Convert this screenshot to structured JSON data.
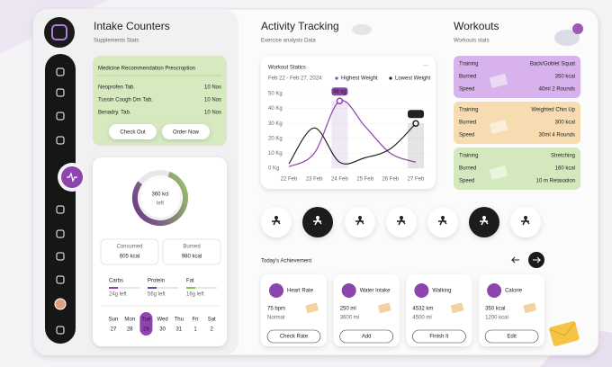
{
  "intake": {
    "title": "Intake Counters",
    "subtitle": "Supplements Stats",
    "prescription": {
      "title": "Medicine Recommendation Prescroption",
      "rows": [
        [
          "Neoprofen Tab.",
          "10 Nos"
        ],
        [
          "Tussin Cough Dm Tab.",
          "10 Nos"
        ],
        [
          "Benadry. Tab.",
          "10 Nos"
        ]
      ],
      "buttons": [
        "Check Out",
        "Order Now"
      ]
    },
    "calories": {
      "value": "360 kcl",
      "label": "left",
      "consumed": {
        "label": "Consumed",
        "value": "605 kcal"
      },
      "burned": {
        "label": "Burned",
        "value": "980 kcal"
      }
    },
    "macros": [
      {
        "name": "Carbs",
        "left": "24g left",
        "color": "#8e44ad"
      },
      {
        "name": "Protein",
        "left": "56g left",
        "color": "#6b4c9a"
      },
      {
        "name": "Fat",
        "left": "16g left",
        "color": "#8bc34a"
      }
    ],
    "calendar": {
      "days": [
        [
          "Sun",
          "27"
        ],
        [
          "Mon",
          "28"
        ],
        [
          "Tue",
          "29"
        ],
        [
          "Wed",
          "30"
        ],
        [
          "Thu",
          "31"
        ],
        [
          "Fri",
          "1"
        ],
        [
          "Sat",
          "2"
        ]
      ],
      "selected": 2
    }
  },
  "activity": {
    "title": "Activity Tracking",
    "subtitle": "Exercise analysis Data",
    "chart": {
      "type": "line",
      "title": "Workout Statics",
      "subtitle": "Feb 22 - Feb 27, 2024",
      "categories": [
        "22 Feb",
        "23 Feb",
        "24 Feb",
        "25 Feb",
        "26 Feb",
        "27 Feb"
      ],
      "series": [
        {
          "name": "Highest Weight",
          "color": "#8e44ad",
          "values": [
            1,
            10,
            45,
            28,
            10,
            4
          ]
        },
        {
          "name": "Lowest Weight",
          "color": "#222222",
          "values": [
            3,
            27,
            4,
            7,
            13,
            30
          ]
        }
      ],
      "ylim": [
        0,
        50
      ],
      "yticks": [
        {
          "value": 0,
          "label": "0 Kg"
        },
        {
          "value": 10,
          "label": "10 Kg"
        },
        {
          "value": 20,
          "label": "20 Kg"
        },
        {
          "value": 30,
          "label": "30 Kg"
        },
        {
          "value": 40,
          "label": "40 Kg"
        },
        {
          "value": 50,
          "label": "50 Kg"
        }
      ],
      "annotations": [
        "48 kg",
        "38 kg"
      ]
    },
    "achievement_title": "Today's Achievement",
    "achievements": [
      {
        "title": "Heart Rate",
        "value": "75 bpm",
        "note": "Normal",
        "button": "Check Rate"
      },
      {
        "title": "Water Intake",
        "value": "250 ml",
        "note": "3600 ml",
        "button": "Add"
      },
      {
        "title": "Walking",
        "value": "4532 km",
        "note": "4500 ml",
        "button": "Finish It"
      },
      {
        "title": "Calorie",
        "value": "350 kcal",
        "note": "1200 kcal",
        "button": "Edit"
      }
    ]
  },
  "workouts": {
    "title": "Workouts",
    "subtitle": "Workouts stats",
    "cards": [
      {
        "color": "#d7b2ec",
        "rows": [
          [
            "Training",
            "Back/Goblet Squat"
          ],
          [
            "Burned",
            "350 kcal"
          ],
          [
            "Speed",
            "40ml 2 Rounds"
          ]
        ]
      },
      {
        "color": "#f6dcb0",
        "rows": [
          [
            "Training",
            "Weighted Chin Up"
          ],
          [
            "Burned",
            "300 kcal"
          ],
          [
            "Speed",
            "30ml 4 Rounds"
          ]
        ]
      },
      {
        "color": "#d3e9bd",
        "rows": [
          [
            "Training",
            "Stretching"
          ],
          [
            "Burned",
            "160 kcal"
          ],
          [
            "Speed",
            "10 m Relaxation"
          ]
        ]
      }
    ]
  }
}
